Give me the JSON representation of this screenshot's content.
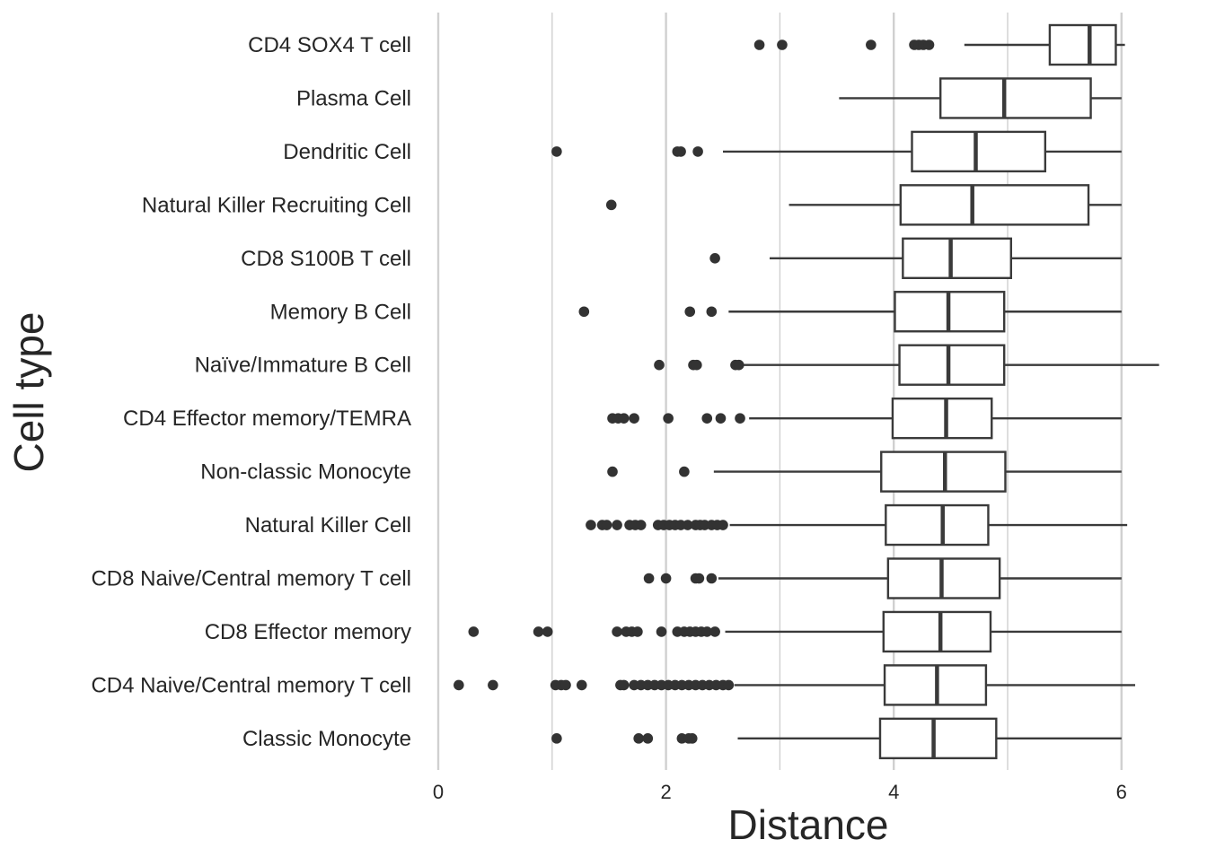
{
  "chart_data": {
    "type": "box",
    "orientation": "horizontal",
    "xlabel": "Distance",
    "ylabel": "Cell type",
    "xlim": [
      0,
      6.3
    ],
    "xticks": [
      0,
      2,
      4,
      6
    ],
    "grid": true,
    "colors": {
      "box_line": "#3a3a3a",
      "outlier": "#333333",
      "grid": "#d0d0d0",
      "text": "#262626"
    },
    "categories": [
      "CD4 SOX4 T cell",
      "Plasma Cell",
      "Dendritic Cell",
      "Natural Killer Recruiting Cell",
      "CD8 S100B T cell",
      "Memory B Cell",
      "Naïve/Immature B Cell",
      "CD4 Effector memory/TEMRA",
      "Non-classic Monocyte",
      "Natural Killer Cell",
      "CD8 Naive/Central memory T cell",
      "CD8 Effector memory",
      "CD4 Naive/Central memory T cell",
      "Classic Monocyte"
    ],
    "boxes": [
      {
        "whislo": 4.62,
        "q1": 5.37,
        "med": 5.72,
        "q3": 5.95,
        "whishi": 6.03,
        "fliers": [
          2.82,
          3.02,
          3.8,
          4.18,
          4.22,
          4.26,
          4.31
        ]
      },
      {
        "whislo": 3.52,
        "q1": 4.41,
        "med": 4.97,
        "q3": 5.73,
        "whishi": 6.0,
        "fliers": []
      },
      {
        "whislo": 2.5,
        "q1": 4.16,
        "med": 4.72,
        "q3": 5.33,
        "whishi": 6.0,
        "fliers": [
          1.04,
          2.1,
          2.13,
          2.28
        ]
      },
      {
        "whislo": 3.08,
        "q1": 4.06,
        "med": 4.69,
        "q3": 5.71,
        "whishi": 6.0,
        "fliers": [
          1.52
        ]
      },
      {
        "whislo": 2.91,
        "q1": 4.08,
        "med": 4.5,
        "q3": 5.03,
        "whishi": 6.0,
        "fliers": [
          2.43
        ]
      },
      {
        "whislo": 2.55,
        "q1": 4.01,
        "med": 4.48,
        "q3": 4.97,
        "whishi": 6.0,
        "fliers": [
          1.28,
          2.21,
          2.4
        ]
      },
      {
        "whislo": 2.67,
        "q1": 4.05,
        "med": 4.48,
        "q3": 4.97,
        "whishi": 6.33,
        "fliers": [
          1.94,
          2.24,
          2.27,
          2.61,
          2.64
        ]
      },
      {
        "whislo": 2.73,
        "q1": 3.99,
        "med": 4.46,
        "q3": 4.86,
        "whishi": 6.0,
        "fliers": [
          1.53,
          1.58,
          1.63,
          1.72,
          2.02,
          2.36,
          2.48,
          2.65
        ]
      },
      {
        "whislo": 2.42,
        "q1": 3.89,
        "med": 4.45,
        "q3": 4.98,
        "whishi": 6.0,
        "fliers": [
          1.53,
          2.16
        ]
      },
      {
        "whislo": 2.56,
        "q1": 3.93,
        "med": 4.43,
        "q3": 4.83,
        "whishi": 6.05,
        "fliers": [
          1.34,
          1.44,
          1.48,
          1.57,
          1.68,
          1.73,
          1.78,
          1.93,
          1.98,
          2.03,
          2.08,
          2.13,
          2.19,
          2.26,
          2.3,
          2.34,
          2.4,
          2.45,
          2.5
        ]
      },
      {
        "whislo": 2.46,
        "q1": 3.95,
        "med": 4.42,
        "q3": 4.93,
        "whishi": 6.0,
        "fliers": [
          1.85,
          2.0,
          2.26,
          2.29,
          2.4
        ]
      },
      {
        "whislo": 2.52,
        "q1": 3.91,
        "med": 4.41,
        "q3": 4.85,
        "whishi": 6.0,
        "fliers": [
          0.31,
          0.88,
          0.96,
          1.57,
          1.65,
          1.7,
          1.75,
          1.96,
          2.1,
          2.16,
          2.21,
          2.26,
          2.31,
          2.36,
          2.43
        ]
      },
      {
        "whislo": 2.6,
        "q1": 3.92,
        "med": 4.38,
        "q3": 4.81,
        "whishi": 6.12,
        "fliers": [
          0.18,
          0.48,
          1.03,
          1.08,
          1.12,
          1.26,
          1.6,
          1.63,
          1.72,
          1.78,
          1.84,
          1.9,
          1.96,
          2.02,
          2.08,
          2.14,
          2.2,
          2.26,
          2.32,
          2.38,
          2.44,
          2.5,
          2.55
        ]
      },
      {
        "whislo": 2.63,
        "q1": 3.88,
        "med": 4.35,
        "q3": 4.9,
        "whishi": 6.0,
        "fliers": [
          1.04,
          1.76,
          1.84,
          2.14,
          2.2,
          2.23
        ]
      }
    ]
  }
}
